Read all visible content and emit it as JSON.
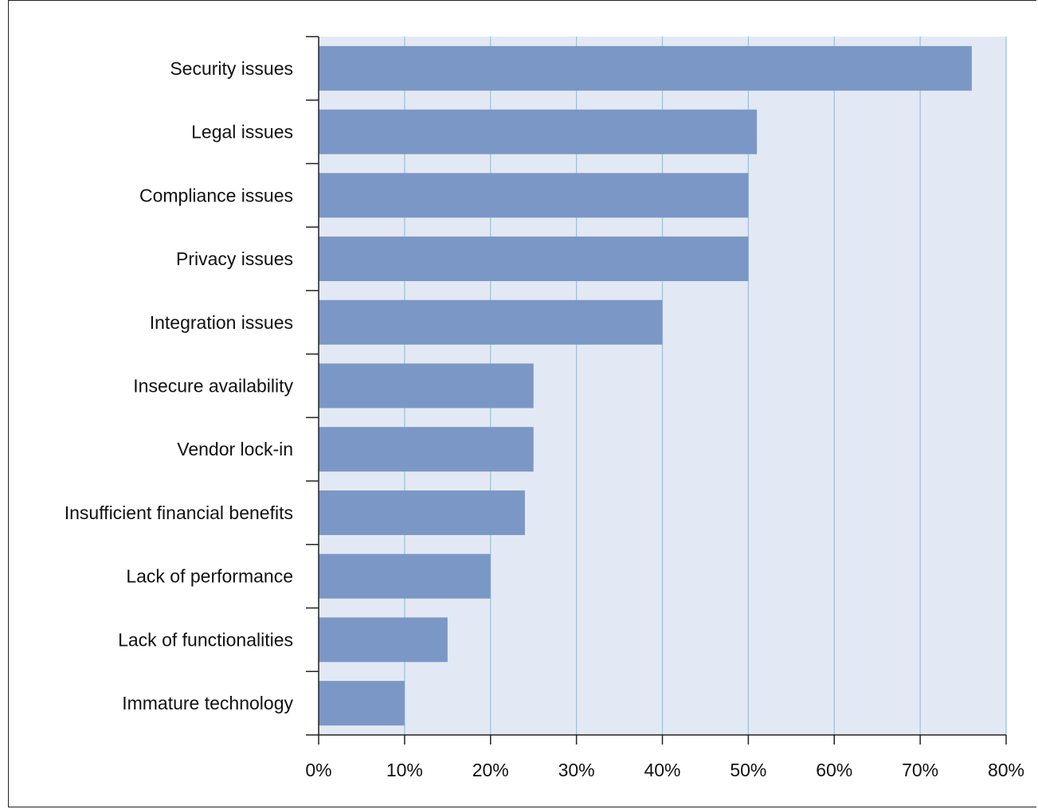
{
  "chart_data": {
    "type": "bar",
    "orientation": "horizontal",
    "categories": [
      "Security issues",
      "Legal issues",
      "Compliance issues",
      "Privacy issues",
      "Integration issues",
      "Insecure availability",
      "Vendor lock-in",
      "Insufficient financial benefits",
      "Lack of performance",
      "Lack of functionalities",
      "Immature technology"
    ],
    "values": [
      76,
      51,
      50,
      50,
      40,
      25,
      25,
      24,
      20,
      15,
      10
    ],
    "xlim": [
      0,
      80
    ],
    "x_ticks": [
      "0%",
      "10%",
      "20%",
      "30%",
      "40%",
      "50%",
      "60%",
      "70%",
      "80%"
    ],
    "title": "",
    "xlabel": "",
    "ylabel": "",
    "grid": "vertical",
    "colors": {
      "bar": "#7b97c6",
      "plot_background": "#e3e9f4",
      "gridline": "#8fc3e0",
      "axis": "#222222"
    }
  }
}
